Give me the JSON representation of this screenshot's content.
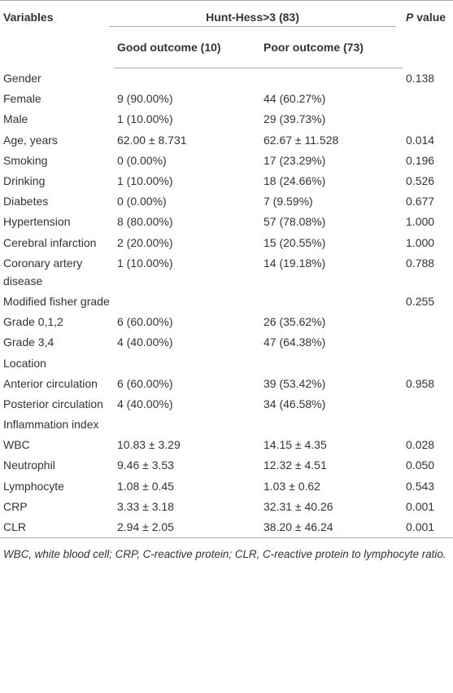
{
  "table": {
    "header": {
      "variables": "Variables",
      "group": "Hunt-Hess>3 (83)",
      "p_value": "P value",
      "subgroups": [
        "Good outcome (10)",
        "Poor outcome (73)"
      ]
    },
    "rows": [
      [
        "Gender",
        null,
        null,
        "0.138"
      ],
      [
        "Female",
        "9 (90.00%)",
        "44 (60.27%)",
        null
      ],
      [
        "Male",
        "1 (10.00%)",
        "29 (39.73%)",
        null
      ],
      [
        "Age, years",
        "62.00 ± 8.731",
        "62.67 ± 11.528",
        "0.014"
      ],
      [
        "Smoking",
        "0 (0.00%)",
        "17 (23.29%)",
        "0.196"
      ],
      [
        "Drinking",
        "1 (10.00%)",
        "18 (24.66%)",
        "0.526"
      ],
      [
        "Diabetes",
        "0 (0.00%)",
        "7 (9.59%)",
        "0.677"
      ],
      [
        "Hypertension",
        "8 (80.00%)",
        "57 (78.08%)",
        "1.000"
      ],
      [
        "Cerebral infarction",
        "2 (20.00%)",
        "15 (20.55%)",
        "1.000"
      ],
      [
        "Coronary artery disease",
        "1 (10.00%)",
        "14 (19.18%)",
        "0.788"
      ],
      [
        "Modified fisher grade",
        null,
        null,
        "0.255"
      ],
      [
        "Grade 0,1,2",
        "6 (60.00%)",
        "26 (35.62%)",
        null
      ],
      [
        "Grade 3,4",
        "4 (40.00%)",
        "47 (64.38%)",
        null
      ],
      [
        "Location",
        null,
        null,
        null
      ],
      [
        "Anterior circulation",
        "6 (60.00%)",
        "39 (53.42%)",
        "0.958"
      ],
      [
        "Posterior circulation",
        "4 (40.00%)",
        "34 (46.58%)",
        null
      ],
      [
        "Inflammation index",
        null,
        null,
        null
      ],
      [
        "WBC",
        "10.83 ± 3.29",
        "14.15 ± 4.35",
        "0.028"
      ],
      [
        "Neutrophil",
        "9.46 ± 3.53",
        "12.32 ± 4.51",
        "0.050"
      ],
      [
        "Lymphocyte",
        "1.08 ± 0.45",
        "1.03 ± 0.62",
        "0.543"
      ],
      [
        "CRP",
        "3.33 ± 3.18",
        "32.31 ± 40.26",
        "0.001"
      ],
      [
        "CLR",
        "2.94 ± 2.05",
        "38.20 ± 46.24",
        "0.001"
      ]
    ],
    "footnote": "WBC, white blood cell; CRP, C-reactive protein; CLR, C-reactive protein to lymphocyte ratio."
  }
}
